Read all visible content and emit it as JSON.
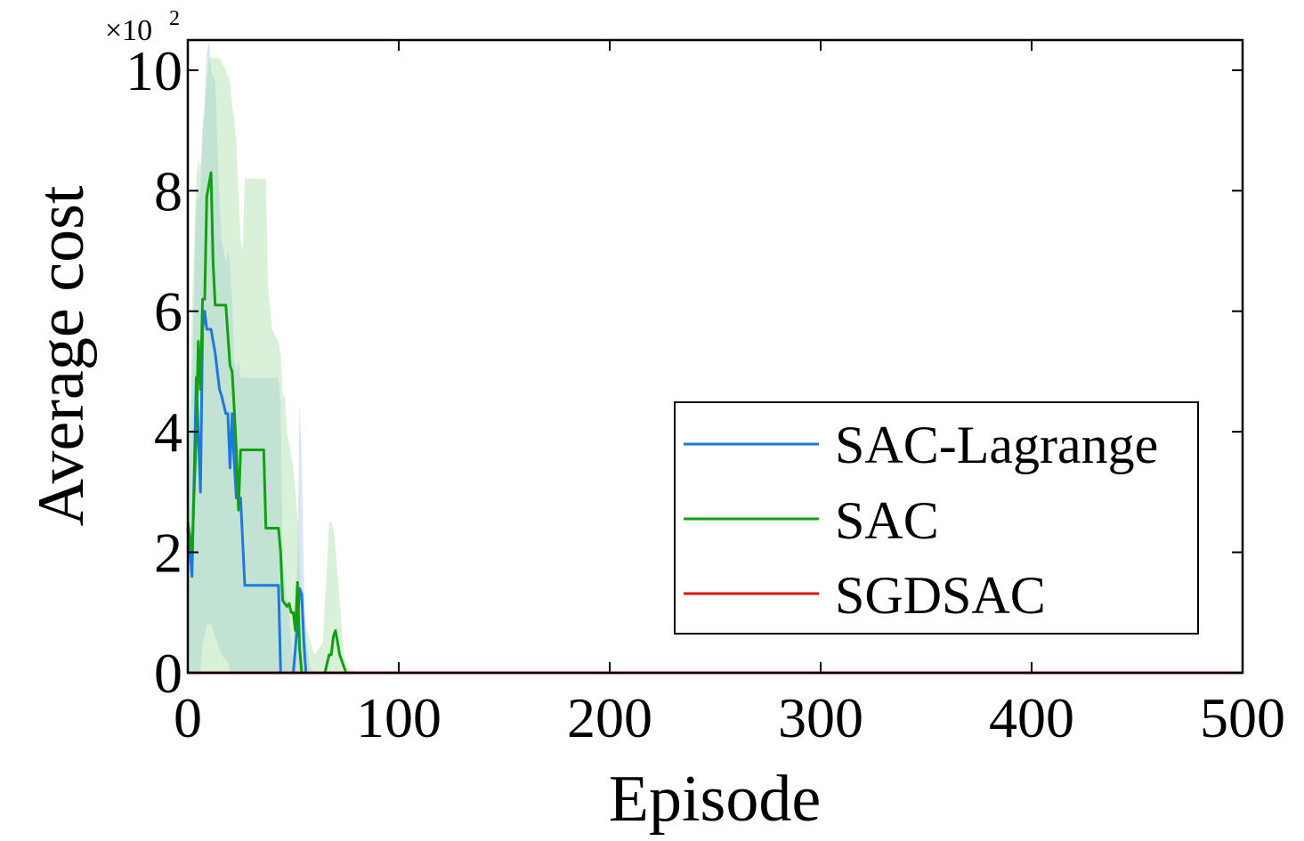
{
  "chart_data": {
    "type": "line",
    "xlabel": "Episode",
    "ylabel": "Average cost",
    "y_multiplier_label": "×10",
    "y_multiplier_exp": "2",
    "xlim": [
      0,
      500
    ],
    "ylim": [
      0,
      10.5
    ],
    "xticks": [
      "0",
      "100",
      "200",
      "300",
      "400",
      "500"
    ],
    "yticks": [
      "0",
      "2",
      "4",
      "6",
      "8",
      "10"
    ],
    "legend_position": "lower-right",
    "grid": false,
    "series": [
      {
        "name": "SAC-Lagrange",
        "color": "#1f77e0",
        "band_color": "#a8c8f0",
        "x": [
          0,
          2,
          4,
          6,
          7,
          8,
          9,
          10,
          11,
          13,
          15,
          16,
          18,
          19,
          20,
          21,
          22,
          23,
          24,
          25,
          27,
          28,
          30,
          35,
          40,
          42,
          43,
          44,
          45,
          46,
          47,
          48,
          49,
          50,
          52,
          53,
          54,
          55,
          56,
          57,
          58,
          60,
          80,
          500
        ],
        "y": [
          2.4,
          1.6,
          4.9,
          3.0,
          5.7,
          6.0,
          5.7,
          5.7,
          5.7,
          5.3,
          4.7,
          4.6,
          4.3,
          4.3,
          3.4,
          4.3,
          3.5,
          2.9,
          2.9,
          2.9,
          1.45,
          1.45,
          1.45,
          1.45,
          1.45,
          1.45,
          1.45,
          0.0,
          0.0,
          0.0,
          0.0,
          0.0,
          0.0,
          0.0,
          0.8,
          1.4,
          1.3,
          0.5,
          0.0,
          0.0,
          0.0,
          0.0,
          0.0,
          0.0
        ],
        "upper": [
          2.8,
          4.8,
          7.8,
          8.0,
          9.0,
          9.5,
          10.3,
          10.5,
          10.0,
          9.8,
          7.8,
          7.2,
          6.8,
          7.0,
          6.8,
          6.2,
          5.2,
          5.0,
          5.2,
          4.9,
          4.9,
          4.9,
          4.9,
          4.9,
          4.9,
          4.9,
          4.9,
          4.4,
          2.0,
          1.5,
          1.2,
          1.0,
          0.5,
          0.2,
          2.0,
          4.5,
          3.5,
          1.5,
          0.6,
          0.3,
          0.1,
          0.0,
          0.0,
          0.0
        ],
        "lower": [
          0.0,
          0.0,
          0.0,
          0.0,
          0.5,
          0.6,
          0.8,
          0.8,
          0.8,
          0.6,
          0.4,
          0.3,
          0.2,
          0.2,
          0.0,
          0.0,
          0.0,
          0.0,
          0.0,
          0.0,
          0.0,
          0.0,
          0.0,
          0.0,
          0.0,
          0.0,
          0.0,
          0.0,
          0.0,
          0.0,
          0.0,
          0.0,
          0.0,
          0.0,
          0.0,
          0.0,
          0.0,
          0.0,
          0.0,
          0.0,
          0.0,
          0.0,
          0.0,
          0.0
        ]
      },
      {
        "name": "SAC",
        "color": "#10a010",
        "band_color": "#a8e0a8",
        "x": [
          0,
          2,
          4,
          5,
          6,
          7,
          8,
          9,
          10,
          11,
          12,
          13,
          15,
          18,
          20,
          21,
          22,
          23,
          24,
          25,
          26,
          27,
          30,
          35,
          36,
          37,
          38,
          40,
          43,
          44,
          45,
          46,
          47,
          48,
          49,
          50,
          51,
          52,
          53,
          54,
          60,
          64,
          65,
          66,
          67,
          68,
          69,
          70,
          71,
          72,
          73,
          74,
          75,
          80,
          500
        ],
        "y": [
          2.5,
          2.0,
          4.0,
          5.5,
          4.7,
          6.2,
          6.2,
          7.9,
          8.1,
          8.3,
          6.8,
          6.1,
          6.1,
          6.1,
          5.1,
          5.0,
          4.4,
          3.7,
          2.7,
          3.7,
          3.7,
          3.7,
          3.7,
          3.7,
          3.7,
          2.4,
          2.4,
          2.4,
          2.4,
          2.0,
          1.2,
          1.15,
          1.1,
          1.15,
          1.0,
          1.0,
          0.7,
          1.5,
          0.4,
          0.0,
          0.0,
          0.0,
          0.0,
          0.15,
          0.3,
          0.3,
          0.6,
          0.7,
          0.5,
          0.3,
          0.2,
          0.1,
          0.0,
          0.0,
          0.0
        ],
        "upper": [
          3.0,
          6.0,
          8.2,
          8.5,
          8.4,
          9.0,
          9.3,
          9.8,
          10.2,
          10.2,
          10.2,
          10.2,
          10.2,
          10.0,
          9.8,
          9.4,
          9.2,
          8.8,
          8.0,
          7.2,
          7.0,
          8.2,
          8.2,
          8.2,
          8.2,
          8.2,
          6.4,
          5.7,
          5.5,
          5.3,
          4.6,
          4.6,
          4.0,
          3.8,
          3.6,
          3.4,
          3.0,
          2.6,
          2.0,
          1.0,
          0.3,
          0.5,
          1.2,
          1.8,
          2.5,
          2.5,
          2.4,
          2.1,
          1.6,
          1.2,
          0.7,
          0.3,
          0.1,
          0.0,
          0.0
        ],
        "lower": [
          0.0,
          0.0,
          0.0,
          0.0,
          0.0,
          0.0,
          0.0,
          0.0,
          0.0,
          0.0,
          0.0,
          0.0,
          0.0,
          0.0,
          0.0,
          0.0,
          0.0,
          0.0,
          0.0,
          0.0,
          0.0,
          0.0,
          0.0,
          0.0,
          0.0,
          0.0,
          0.0,
          0.0,
          0.0,
          0.0,
          0.0,
          0.0,
          0.0,
          0.0,
          0.0,
          0.0,
          0.0,
          0.0,
          0.0,
          0.0,
          0.0,
          0.0,
          0.0,
          0.0,
          0.0,
          0.0,
          0.0,
          0.0,
          0.0,
          0.0,
          0.0,
          0.0,
          0.0,
          0.0,
          0.0
        ]
      },
      {
        "name": "SGDSAC",
        "color": "#e01010",
        "x": [
          0,
          500
        ],
        "y": [
          0,
          0
        ]
      }
    ]
  }
}
